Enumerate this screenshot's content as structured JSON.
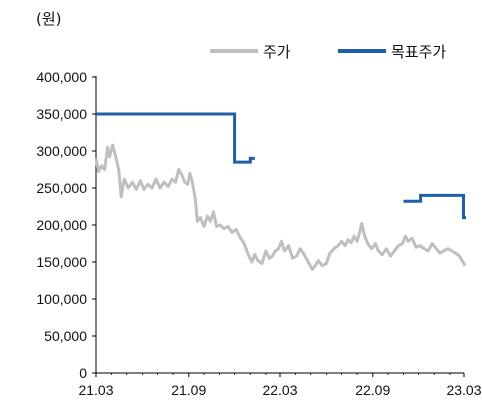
{
  "chart_data": {
    "type": "line",
    "unit_label": "(원)",
    "title": "",
    "xlabel": "",
    "ylabel": "",
    "ylim": [
      0,
      400000
    ],
    "y_ticks": [
      0,
      50000,
      100000,
      150000,
      200000,
      250000,
      300000,
      350000,
      400000
    ],
    "y_tick_labels": [
      "0",
      "50,000",
      "100,000",
      "150,000",
      "200,000",
      "250,000",
      "300,000",
      "350,000",
      "400,000"
    ],
    "x_range": [
      "2021-03-01",
      "2023-03-01"
    ],
    "x_ticks": [
      "2021-03-01",
      "2021-09-01",
      "2022-03-01",
      "2022-09-01",
      "2023-03-01"
    ],
    "x_tick_labels": [
      "21.03",
      "21.09",
      "22.03",
      "22.09",
      "23.03"
    ],
    "grid": false,
    "legend_position": "top-right",
    "series": [
      {
        "name": "주가",
        "color": "#bfbfbf",
        "style": "line",
        "points": [
          [
            "2021-03-01",
            290000
          ],
          [
            "2021-03-06",
            272000
          ],
          [
            "2021-03-12",
            280000
          ],
          [
            "2021-03-18",
            275000
          ],
          [
            "2021-03-24",
            305000
          ],
          [
            "2021-03-28",
            292000
          ],
          [
            "2021-04-03",
            308000
          ],
          [
            "2021-04-10",
            290000
          ],
          [
            "2021-04-15",
            275000
          ],
          [
            "2021-04-20",
            238000
          ],
          [
            "2021-04-26",
            262000
          ],
          [
            "2021-05-04",
            250000
          ],
          [
            "2021-05-12",
            258000
          ],
          [
            "2021-05-20",
            248000
          ],
          [
            "2021-05-28",
            260000
          ],
          [
            "2021-06-04",
            248000
          ],
          [
            "2021-06-12",
            255000
          ],
          [
            "2021-06-20",
            250000
          ],
          [
            "2021-06-28",
            262000
          ],
          [
            "2021-07-06",
            250000
          ],
          [
            "2021-07-14",
            258000
          ],
          [
            "2021-07-22",
            252000
          ],
          [
            "2021-07-30",
            262000
          ],
          [
            "2021-08-06",
            258000
          ],
          [
            "2021-08-12",
            275000
          ],
          [
            "2021-08-18",
            268000
          ],
          [
            "2021-08-24",
            258000
          ],
          [
            "2021-08-30",
            255000
          ],
          [
            "2021-09-03",
            270000
          ],
          [
            "2021-09-08",
            258000
          ],
          [
            "2021-09-14",
            235000
          ],
          [
            "2021-09-18",
            205000
          ],
          [
            "2021-09-24",
            210000
          ],
          [
            "2021-10-01",
            198000
          ],
          [
            "2021-10-08",
            212000
          ],
          [
            "2021-10-14",
            205000
          ],
          [
            "2021-10-20",
            218000
          ],
          [
            "2021-10-26",
            198000
          ],
          [
            "2021-11-02",
            200000
          ],
          [
            "2021-11-10",
            195000
          ],
          [
            "2021-11-18",
            198000
          ],
          [
            "2021-11-26",
            190000
          ],
          [
            "2021-12-04",
            194000
          ],
          [
            "2021-12-12",
            183000
          ],
          [
            "2021-12-20",
            175000
          ],
          [
            "2021-12-28",
            160000
          ],
          [
            "2022-01-04",
            150000
          ],
          [
            "2022-01-10",
            160000
          ],
          [
            "2022-01-16",
            152000
          ],
          [
            "2022-01-24",
            148000
          ],
          [
            "2022-02-01",
            165000
          ],
          [
            "2022-02-08",
            155000
          ],
          [
            "2022-02-14",
            158000
          ],
          [
            "2022-02-20",
            165000
          ],
          [
            "2022-02-26",
            168000
          ],
          [
            "2022-03-04",
            178000
          ],
          [
            "2022-03-10",
            165000
          ],
          [
            "2022-03-18",
            172000
          ],
          [
            "2022-03-26",
            155000
          ],
          [
            "2022-04-03",
            158000
          ],
          [
            "2022-04-10",
            168000
          ],
          [
            "2022-04-18",
            160000
          ],
          [
            "2022-04-26",
            150000
          ],
          [
            "2022-05-04",
            140000
          ],
          [
            "2022-05-10",
            145000
          ],
          [
            "2022-05-16",
            152000
          ],
          [
            "2022-05-24",
            145000
          ],
          [
            "2022-06-01",
            148000
          ],
          [
            "2022-06-08",
            162000
          ],
          [
            "2022-06-16",
            168000
          ],
          [
            "2022-06-24",
            172000
          ],
          [
            "2022-07-01",
            178000
          ],
          [
            "2022-07-08",
            172000
          ],
          [
            "2022-07-14",
            180000
          ],
          [
            "2022-07-20",
            176000
          ],
          [
            "2022-07-26",
            185000
          ],
          [
            "2022-08-01",
            178000
          ],
          [
            "2022-08-06",
            190000
          ],
          [
            "2022-08-10",
            202000
          ],
          [
            "2022-08-16",
            185000
          ],
          [
            "2022-08-22",
            175000
          ],
          [
            "2022-08-30",
            168000
          ],
          [
            "2022-09-06",
            175000
          ],
          [
            "2022-09-12",
            165000
          ],
          [
            "2022-09-20",
            160000
          ],
          [
            "2022-09-28",
            168000
          ],
          [
            "2022-10-06",
            158000
          ],
          [
            "2022-10-14",
            165000
          ],
          [
            "2022-10-22",
            172000
          ],
          [
            "2022-10-30",
            175000
          ],
          [
            "2022-11-05",
            185000
          ],
          [
            "2022-11-10",
            178000
          ],
          [
            "2022-11-18",
            182000
          ],
          [
            "2022-11-26",
            170000
          ],
          [
            "2022-12-04",
            172000
          ],
          [
            "2022-12-12",
            168000
          ],
          [
            "2022-12-20",
            165000
          ],
          [
            "2022-12-28",
            175000
          ],
          [
            "2023-01-05",
            168000
          ],
          [
            "2023-01-12",
            162000
          ],
          [
            "2023-01-20",
            165000
          ],
          [
            "2023-01-28",
            168000
          ],
          [
            "2023-02-05",
            165000
          ],
          [
            "2023-02-12",
            162000
          ],
          [
            "2023-02-20",
            158000
          ],
          [
            "2023-02-25",
            152000
          ],
          [
            "2023-03-01",
            148000
          ],
          [
            "2023-03-03",
            145000
          ]
        ]
      },
      {
        "name": "목표주가",
        "color": "#1f5fa8",
        "style": "step",
        "segments": [
          [
            [
              "2021-03-01",
              350000
            ],
            [
              "2021-12-01",
              350000
            ],
            [
              "2021-12-01",
              285000
            ],
            [
              "2022-01-01",
              285000
            ],
            [
              "2022-01-01",
              290000
            ],
            [
              "2022-01-10",
              290000
            ]
          ],
          [
            [
              "2022-11-01",
              232000
            ],
            [
              "2022-12-05",
              232000
            ],
            [
              "2022-12-05",
              240000
            ],
            [
              "2023-02-28",
              240000
            ],
            [
              "2023-02-28",
              210000
            ],
            [
              "2023-03-05",
              210000
            ]
          ]
        ]
      }
    ]
  }
}
